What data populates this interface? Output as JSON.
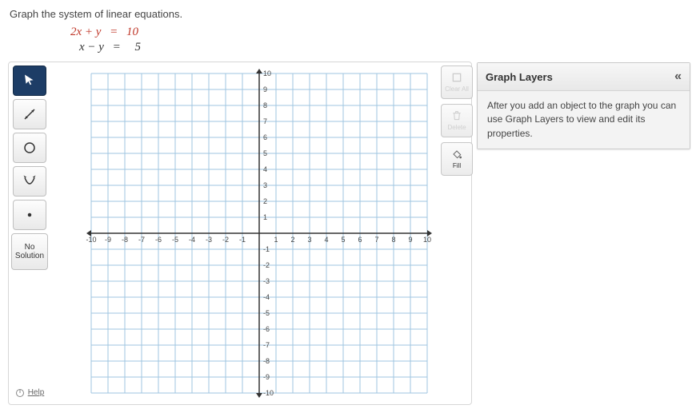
{
  "question": "Graph the system of linear equations.",
  "equations": {
    "eq1_lhs": "2x + y",
    "eq1_rhs": "10",
    "eq2_lhs": "x − y",
    "eq2_rhs": "5",
    "eq_sign": "="
  },
  "tools": {
    "pointer": "pointer-icon",
    "line": "line-icon",
    "circle": "circle-icon",
    "parabola": "parabola-icon",
    "point": "point-icon",
    "no_solution_label": "No Solution",
    "help_label": "Help"
  },
  "right_tools": {
    "clear_all_label": "Clear All",
    "delete_label": "Delete",
    "fill_label": "Fill"
  },
  "panel": {
    "title": "Graph Layers",
    "body": "After you add an object to the graph you can use Graph Layers to view and edit its properties."
  },
  "graph": {
    "xmin": -10,
    "xmax": 10,
    "ymin": -10,
    "ymax": 10,
    "xtick_step": 1,
    "ytick_step": 1,
    "gridline_color": "#9fc6e0",
    "gridline_width": 1,
    "axis_color": "#333333",
    "background_color": "#ffffff",
    "tick_label_fontsize": 9,
    "tick_label_color": "#444444",
    "x_labels": [
      -10,
      -9,
      -8,
      -7,
      -6,
      -5,
      -4,
      -3,
      -2,
      -1,
      1,
      2,
      3,
      4,
      5,
      6,
      7,
      8,
      9,
      10
    ],
    "y_labels": [
      -10,
      -9,
      -8,
      -7,
      -6,
      -5,
      -4,
      -3,
      -2,
      -1,
      1,
      2,
      3,
      4,
      5,
      6,
      7,
      8,
      9,
      10
    ]
  },
  "colors": {
    "active_tool_bg": "#1d3d66",
    "eq_highlight": "#c0392b",
    "panel_bg": "#efefef"
  }
}
